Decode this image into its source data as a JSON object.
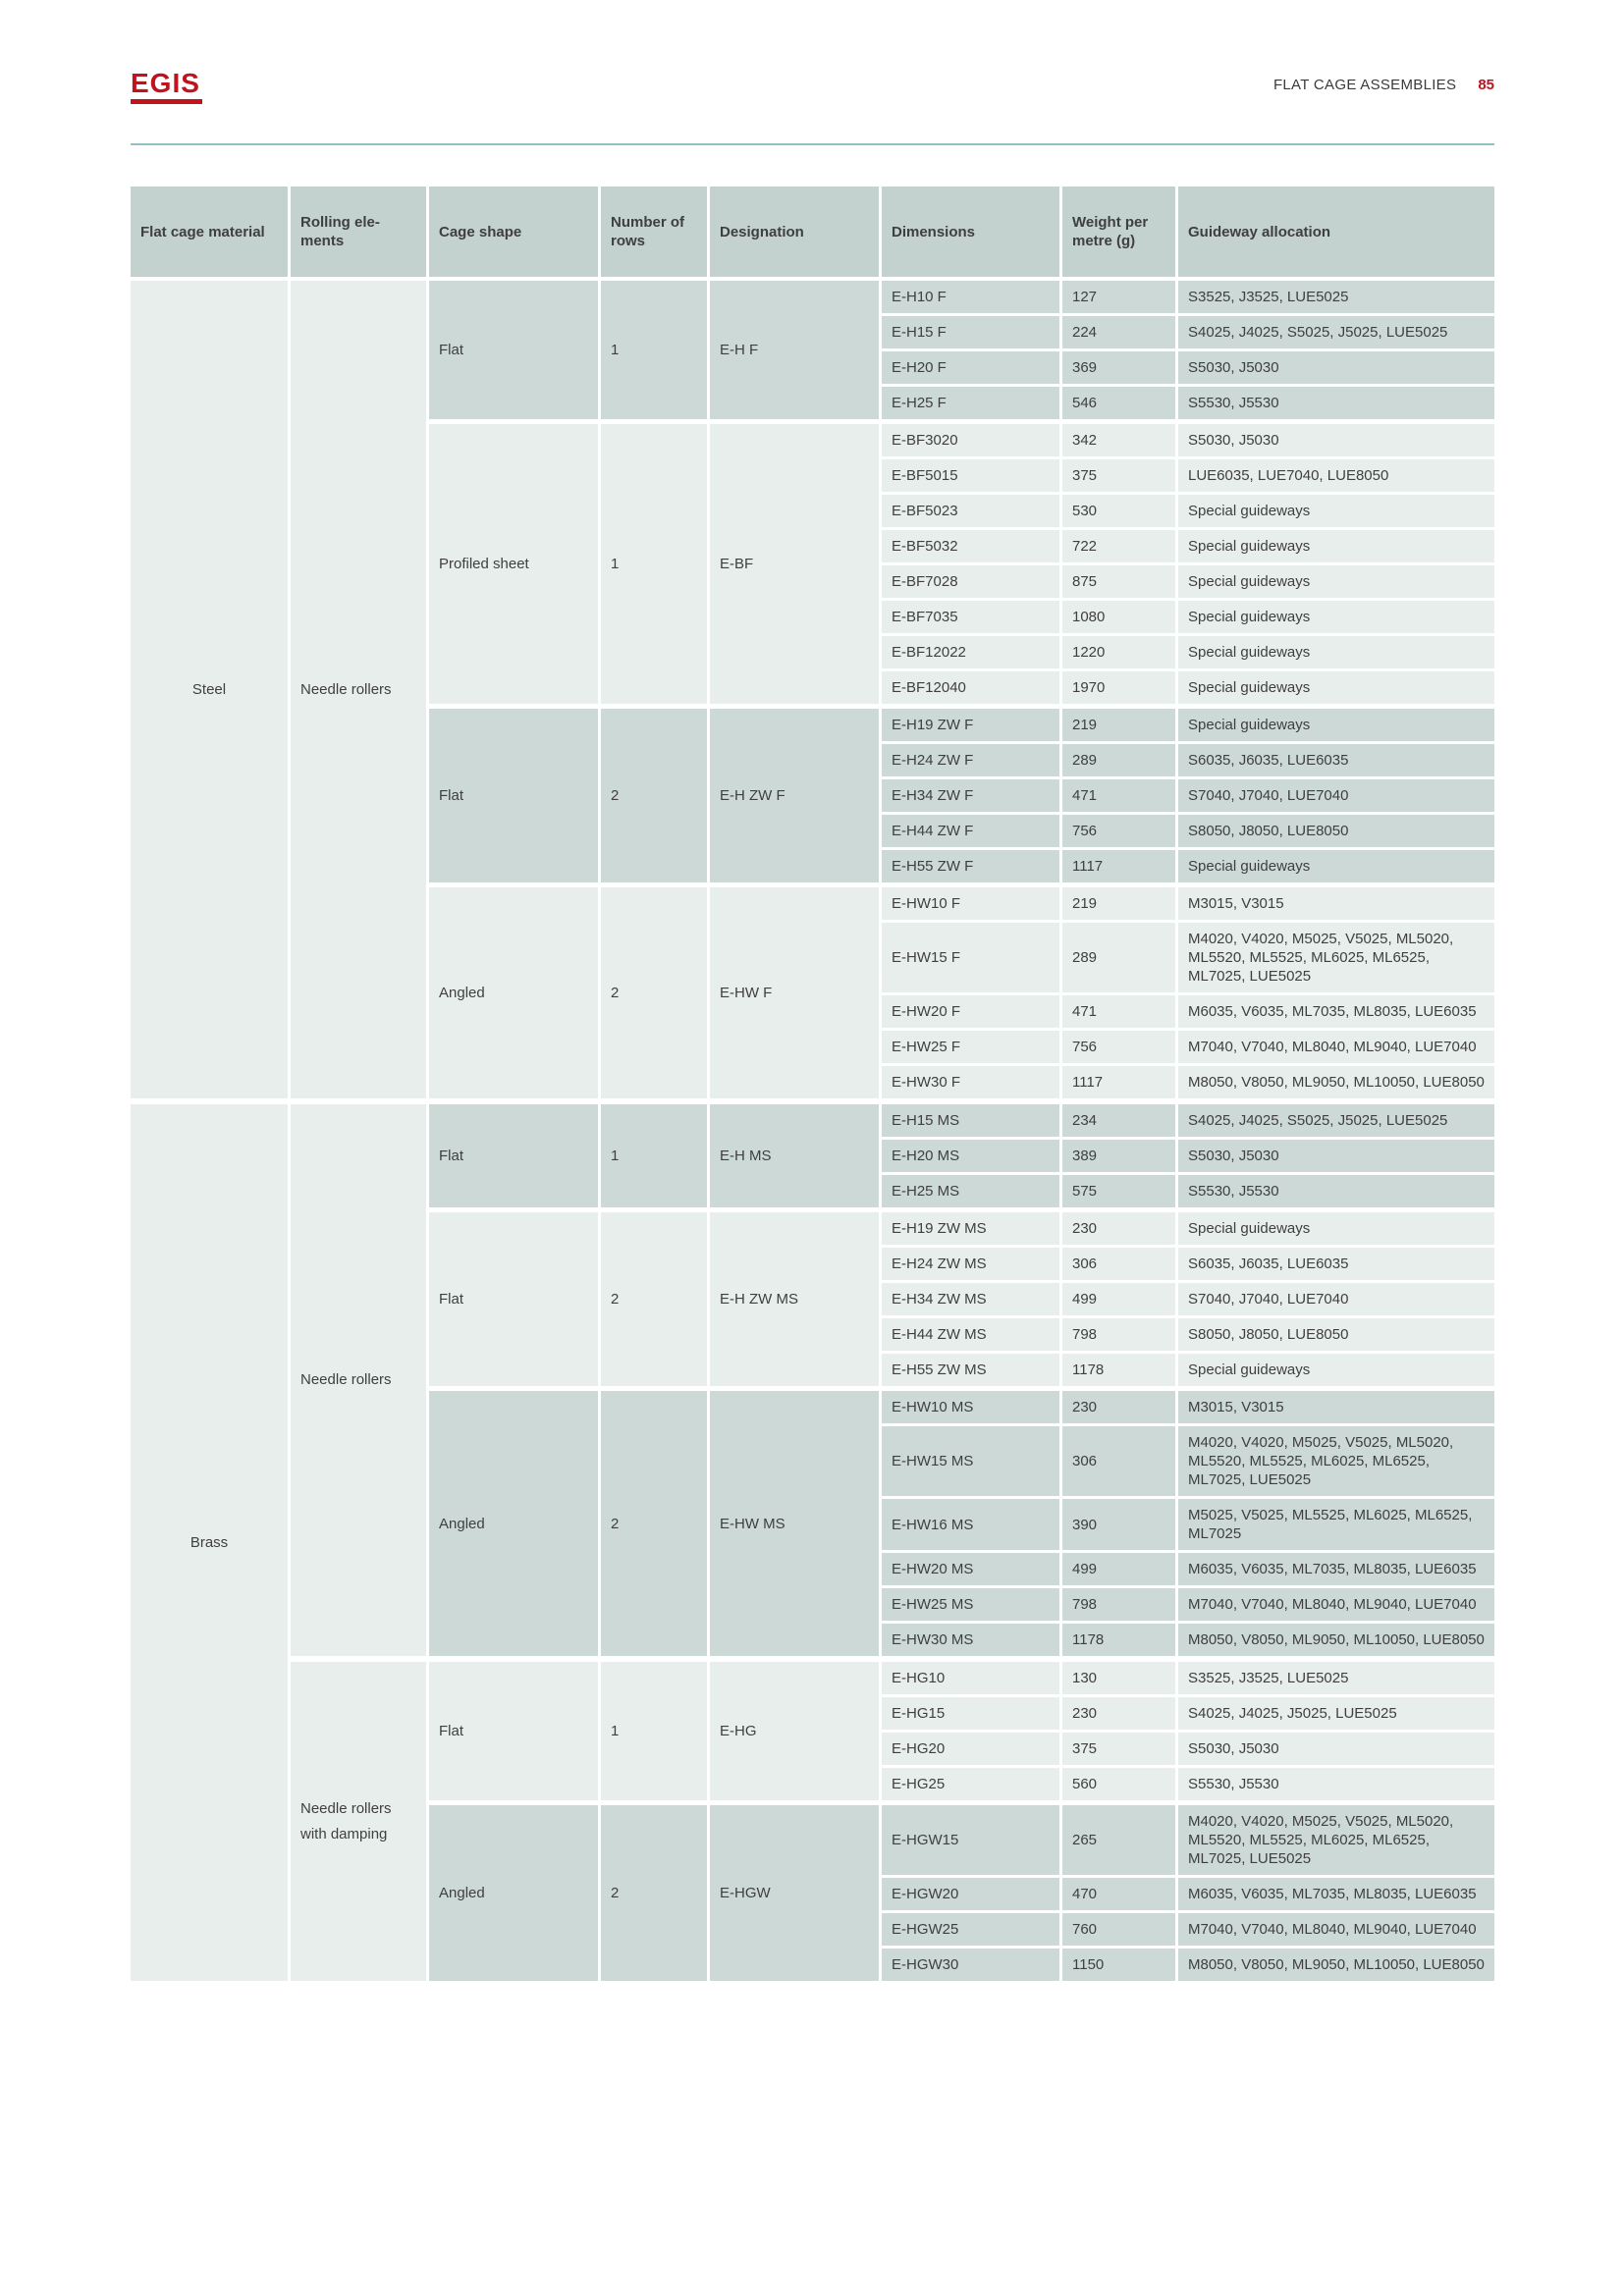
{
  "header": {
    "logo_text": "EGIS",
    "title": "FLAT CAGE ASSEMBLIES",
    "page_number": "85"
  },
  "colors": {
    "accent_red": "#c0131c",
    "header_cell_bg": "#c3d1cf",
    "cell_dark_bg": "#ccd9d6",
    "cell_light_bg": "#e8eeec",
    "rule_teal": "#8fc1c5",
    "text": "#3f3f3f"
  },
  "table": {
    "columns": [
      "Flat cage material",
      "Rolling ele-ments",
      "Cage shape",
      "Number of rows",
      "Designation",
      "Dimensions",
      "Weight per metre (g)",
      "Guideway allocation"
    ],
    "sections": [
      {
        "material": "Steel",
        "subsections": [
          {
            "rolling_elements": "Needle rollers",
            "groups": [
              {
                "cage_shape": "Flat",
                "number_of_rows": "1",
                "designation": "E-H F",
                "shade": "dark",
                "items": [
                  {
                    "dimensions": "E-H10 F",
                    "weight": "127",
                    "guideway": "S3525, J3525, LUE5025"
                  },
                  {
                    "dimensions": "E-H15 F",
                    "weight": "224",
                    "guideway": "S4025, J4025, S5025, J5025, LUE5025"
                  },
                  {
                    "dimensions": "E-H20 F",
                    "weight": "369",
                    "guideway": "S5030, J5030"
                  },
                  {
                    "dimensions": "E-H25 F",
                    "weight": "546",
                    "guideway": "S5530, J5530"
                  }
                ]
              },
              {
                "cage_shape": "Profiled sheet",
                "number_of_rows": "1",
                "designation": "E-BF",
                "shade": "light",
                "items": [
                  {
                    "dimensions": "E-BF3020",
                    "weight": "342",
                    "guideway": "S5030, J5030"
                  },
                  {
                    "dimensions": "E-BF5015",
                    "weight": "375",
                    "guideway": "LUE6035, LUE7040, LUE8050"
                  },
                  {
                    "dimensions": "E-BF5023",
                    "weight": "530",
                    "guideway": "Special guideways"
                  },
                  {
                    "dimensions": "E-BF5032",
                    "weight": "722",
                    "guideway": "Special guideways"
                  },
                  {
                    "dimensions": "E-BF7028",
                    "weight": "875",
                    "guideway": "Special guideways"
                  },
                  {
                    "dimensions": "E-BF7035",
                    "weight": "1080",
                    "guideway": "Special guideways"
                  },
                  {
                    "dimensions": "E-BF12022",
                    "weight": "1220",
                    "guideway": "Special guideways"
                  },
                  {
                    "dimensions": "E-BF12040",
                    "weight": "1970",
                    "guideway": "Special guideways"
                  }
                ]
              },
              {
                "cage_shape": "Flat",
                "number_of_rows": "2",
                "designation": "E-H ZW F",
                "shade": "dark",
                "items": [
                  {
                    "dimensions": "E-H19 ZW F",
                    "weight": "219",
                    "guideway": "Special guideways"
                  },
                  {
                    "dimensions": "E-H24 ZW F",
                    "weight": "289",
                    "guideway": "S6035, J6035, LUE6035"
                  },
                  {
                    "dimensions": "E-H34 ZW F",
                    "weight": "471",
                    "guideway": "S7040, J7040, LUE7040"
                  },
                  {
                    "dimensions": "E-H44 ZW F",
                    "weight": "756",
                    "guideway": "S8050, J8050, LUE8050"
                  },
                  {
                    "dimensions": "E-H55 ZW F",
                    "weight": "1117",
                    "guideway": "Special guideways"
                  }
                ]
              },
              {
                "cage_shape": "Angled",
                "number_of_rows": "2",
                "designation": "E-HW F",
                "shade": "light",
                "items": [
                  {
                    "dimensions": "E-HW10 F",
                    "weight": "219",
                    "guideway": "M3015, V3015"
                  },
                  {
                    "dimensions": "E-HW15 F",
                    "weight": "289",
                    "guideway": "M4020, V4020, M5025, V5025, ML5020, ML5520, ML5525, ML6025, ML6525, ML7025, LUE5025"
                  },
                  {
                    "dimensions": "E-HW20 F",
                    "weight": "471",
                    "guideway": "M6035, V6035, ML7035, ML8035, LUE6035"
                  },
                  {
                    "dimensions": "E-HW25 F",
                    "weight": "756",
                    "guideway": "M7040, V7040, ML8040, ML9040, LUE7040"
                  },
                  {
                    "dimensions": "E-HW30 F",
                    "weight": "1117",
                    "guideway": "M8050, V8050, ML9050, ML10050, LUE8050"
                  }
                ]
              }
            ]
          }
        ]
      },
      {
        "material": "Brass",
        "subsections": [
          {
            "rolling_elements": "Needle rollers",
            "groups": [
              {
                "cage_shape": "Flat",
                "number_of_rows": "1",
                "designation": "E-H MS",
                "shade": "dark",
                "items": [
                  {
                    "dimensions": "E-H15 MS",
                    "weight": "234",
                    "guideway": "S4025, J4025, S5025, J5025, LUE5025"
                  },
                  {
                    "dimensions": "E-H20 MS",
                    "weight": "389",
                    "guideway": "S5030, J5030"
                  },
                  {
                    "dimensions": "E-H25 MS",
                    "weight": "575",
                    "guideway": "S5530, J5530"
                  }
                ]
              },
              {
                "cage_shape": "Flat",
                "number_of_rows": "2",
                "designation": "E-H ZW MS",
                "shade": "light",
                "items": [
                  {
                    "dimensions": "E-H19 ZW MS",
                    "weight": "230",
                    "guideway": "Special guideways"
                  },
                  {
                    "dimensions": "E-H24 ZW MS",
                    "weight": "306",
                    "guideway": "S6035, J6035, LUE6035"
                  },
                  {
                    "dimensions": "E-H34 ZW MS",
                    "weight": "499",
                    "guideway": "S7040, J7040, LUE7040"
                  },
                  {
                    "dimensions": "E-H44 ZW MS",
                    "weight": "798",
                    "guideway": "S8050, J8050, LUE8050"
                  },
                  {
                    "dimensions": "E-H55 ZW MS",
                    "weight": "1178",
                    "guideway": "Special guideways"
                  }
                ]
              },
              {
                "cage_shape": "Angled",
                "number_of_rows": "2",
                "designation": "E-HW MS",
                "shade": "dark",
                "items": [
                  {
                    "dimensions": "E-HW10 MS",
                    "weight": "230",
                    "guideway": "M3015, V3015"
                  },
                  {
                    "dimensions": "E-HW15 MS",
                    "weight": "306",
                    "guideway": "M4020, V4020, M5025, V5025, ML5020, ML5520, ML5525, ML6025, ML6525, ML7025, LUE5025"
                  },
                  {
                    "dimensions": "E-HW16 MS",
                    "weight": "390",
                    "guideway": "M5025, V5025, ML5525, ML6025, ML6525, ML7025"
                  },
                  {
                    "dimensions": "E-HW20 MS",
                    "weight": "499",
                    "guideway": "M6035, V6035, ML7035, ML8035, LUE6035"
                  },
                  {
                    "dimensions": "E-HW25 MS",
                    "weight": "798",
                    "guideway": "M7040, V7040, ML8040, ML9040, LUE7040"
                  },
                  {
                    "dimensions": "E-HW30 MS",
                    "weight": "1178",
                    "guideway": "M8050, V8050, ML9050, ML10050, LUE8050"
                  }
                ]
              }
            ]
          },
          {
            "rolling_elements": "Needle rollers with damping",
            "groups": [
              {
                "cage_shape": "Flat",
                "number_of_rows": "1",
                "designation": "E-HG",
                "shade": "light",
                "items": [
                  {
                    "dimensions": "E-HG10",
                    "weight": "130",
                    "guideway": "S3525, J3525, LUE5025"
                  },
                  {
                    "dimensions": "E-HG15",
                    "weight": "230",
                    "guideway": "S4025, J4025, J5025, LUE5025"
                  },
                  {
                    "dimensions": "E-HG20",
                    "weight": "375",
                    "guideway": "S5030, J5030"
                  },
                  {
                    "dimensions": "E-HG25",
                    "weight": "560",
                    "guideway": "S5530, J5530"
                  }
                ]
              },
              {
                "cage_shape": "Angled",
                "number_of_rows": "2",
                "designation": "E-HGW",
                "shade": "dark",
                "items": [
                  {
                    "dimensions": "E-HGW15",
                    "weight": "265",
                    "guideway": "M4020, V4020, M5025, V5025, ML5020, ML5520, ML5525, ML6025, ML6525, ML7025, LUE5025"
                  },
                  {
                    "dimensions": "E-HGW20",
                    "weight": "470",
                    "guideway": "M6035, V6035, ML7035, ML8035, LUE6035"
                  },
                  {
                    "dimensions": "E-HGW25",
                    "weight": "760",
                    "guideway": "M7040, V7040, ML8040, ML9040, LUE7040"
                  },
                  {
                    "dimensions": "E-HGW30",
                    "weight": "1150",
                    "guideway": "M8050, V8050, ML9050, ML10050, LUE8050"
                  }
                ]
              }
            ]
          }
        ]
      }
    ]
  }
}
